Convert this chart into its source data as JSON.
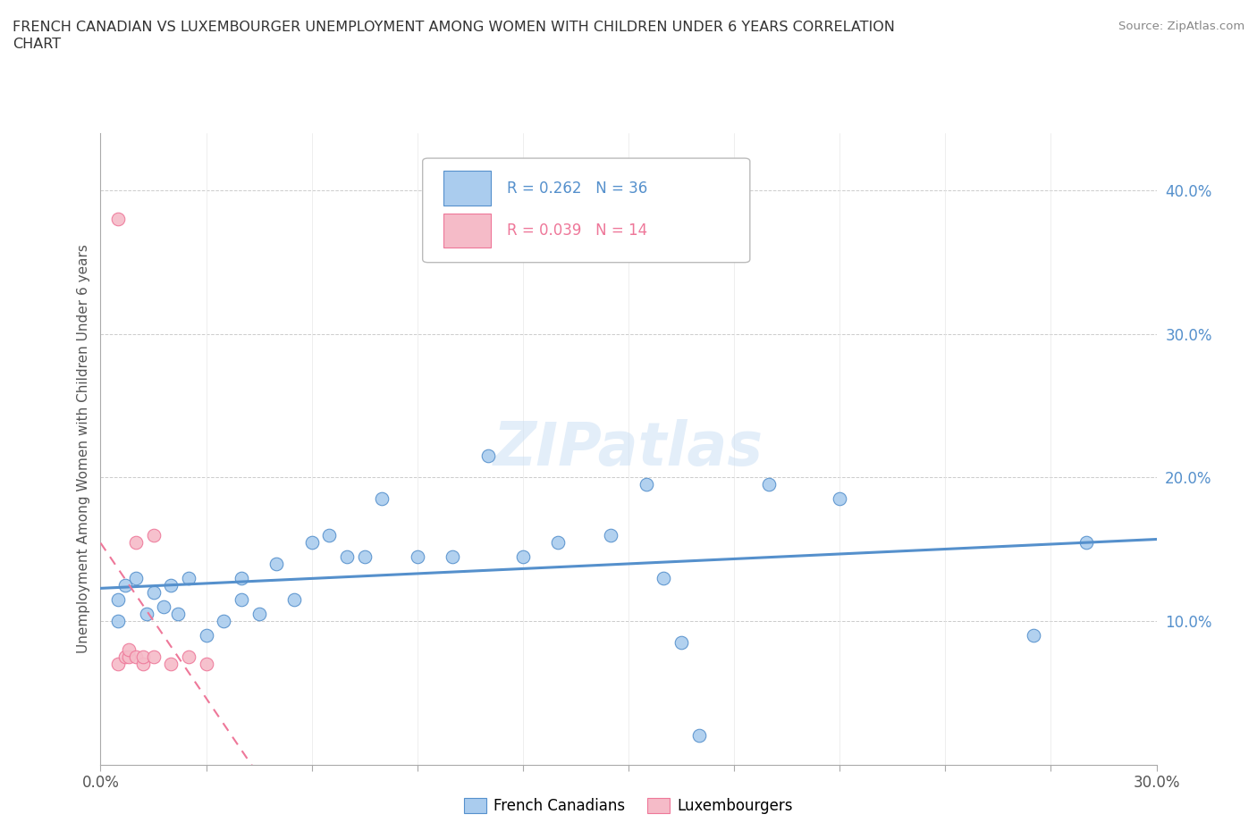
{
  "title_line1": "FRENCH CANADIAN VS LUXEMBOURGER UNEMPLOYMENT AMONG WOMEN WITH CHILDREN UNDER 6 YEARS CORRELATION",
  "title_line2": "CHART",
  "source": "Source: ZipAtlas.com",
  "ylabel": "Unemployment Among Women with Children Under 6 years",
  "xlim": [
    0.0,
    0.3
  ],
  "ylim": [
    0.0,
    0.44
  ],
  "xticks": [
    0.0,
    0.03,
    0.06,
    0.09,
    0.12,
    0.15,
    0.18,
    0.21,
    0.24,
    0.27,
    0.3
  ],
  "yticks_right": [
    0.1,
    0.2,
    0.3,
    0.4
  ],
  "ytick_right_labels": [
    "10.0%",
    "20.0%",
    "30.0%",
    "40.0%"
  ],
  "french_canadians_x": [
    0.005,
    0.005,
    0.007,
    0.01,
    0.013,
    0.015,
    0.018,
    0.02,
    0.022,
    0.025,
    0.03,
    0.035,
    0.04,
    0.04,
    0.045,
    0.05,
    0.055,
    0.06,
    0.065,
    0.07,
    0.075,
    0.08,
    0.09,
    0.1,
    0.11,
    0.12,
    0.13,
    0.145,
    0.155,
    0.16,
    0.165,
    0.17,
    0.19,
    0.21,
    0.265,
    0.28
  ],
  "french_canadians_y": [
    0.1,
    0.115,
    0.125,
    0.13,
    0.105,
    0.12,
    0.11,
    0.125,
    0.105,
    0.13,
    0.09,
    0.1,
    0.115,
    0.13,
    0.105,
    0.14,
    0.115,
    0.155,
    0.16,
    0.145,
    0.145,
    0.185,
    0.145,
    0.145,
    0.215,
    0.145,
    0.155,
    0.16,
    0.195,
    0.13,
    0.085,
    0.02,
    0.195,
    0.185,
    0.09,
    0.155
  ],
  "luxembourgers_x": [
    0.005,
    0.005,
    0.007,
    0.008,
    0.008,
    0.01,
    0.01,
    0.012,
    0.012,
    0.015,
    0.015,
    0.02,
    0.025,
    0.03
  ],
  "luxembourgers_y": [
    0.38,
    0.07,
    0.075,
    0.075,
    0.08,
    0.155,
    0.075,
    0.07,
    0.075,
    0.16,
    0.075,
    0.07,
    0.075,
    0.07
  ],
  "french_canadians_R": 0.262,
  "french_canadians_N": 36,
  "luxembourgers_R": 0.039,
  "luxembourgers_N": 14,
  "blue_color": "#aaccee",
  "pink_color": "#f5bbc8",
  "blue_line_color": "#5590cc",
  "pink_line_color": "#ee7799",
  "watermark": "ZIPatlas",
  "background_color": "#ffffff",
  "grid_color": "#cccccc"
}
